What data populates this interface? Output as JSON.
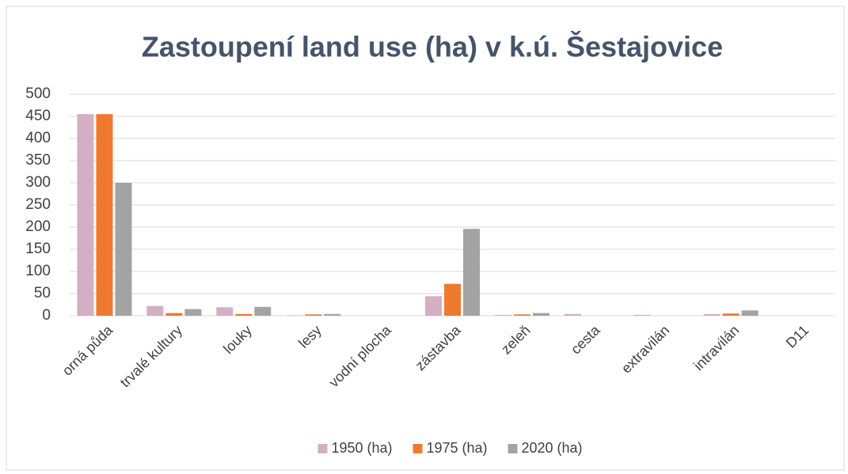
{
  "chart_data": {
    "type": "bar",
    "title": "Zastoupení land use (ha) v k.ú. Šestajovice",
    "categories": [
      "orná půda",
      "trvalé kultury",
      "louky",
      "lesy",
      "vodní plocha",
      "zástavba",
      "zeleň",
      "cesta",
      "extravilán",
      "intravilán",
      "D11"
    ],
    "series": [
      {
        "name": "1950 (ha)",
        "color": "#d4aec2",
        "values": [
          455,
          22,
          19,
          1,
          0,
          44,
          2,
          4,
          2,
          4,
          0
        ]
      },
      {
        "name": "1975 (ha)",
        "color": "#ee7a30",
        "values": [
          455,
          6,
          4,
          3,
          0,
          72,
          3,
          0,
          0,
          5,
          0
        ]
      },
      {
        "name": "2020 (ha)",
        "color": "#a3a3a3",
        "values": [
          300,
          15,
          20,
          4,
          0,
          196,
          6,
          0,
          0,
          12,
          0
        ]
      }
    ],
    "ylim": [
      0,
      500
    ],
    "yticks": [
      0,
      50,
      100,
      150,
      200,
      250,
      300,
      350,
      400,
      450,
      500
    ],
    "grid": true,
    "legend": "bottom"
  }
}
